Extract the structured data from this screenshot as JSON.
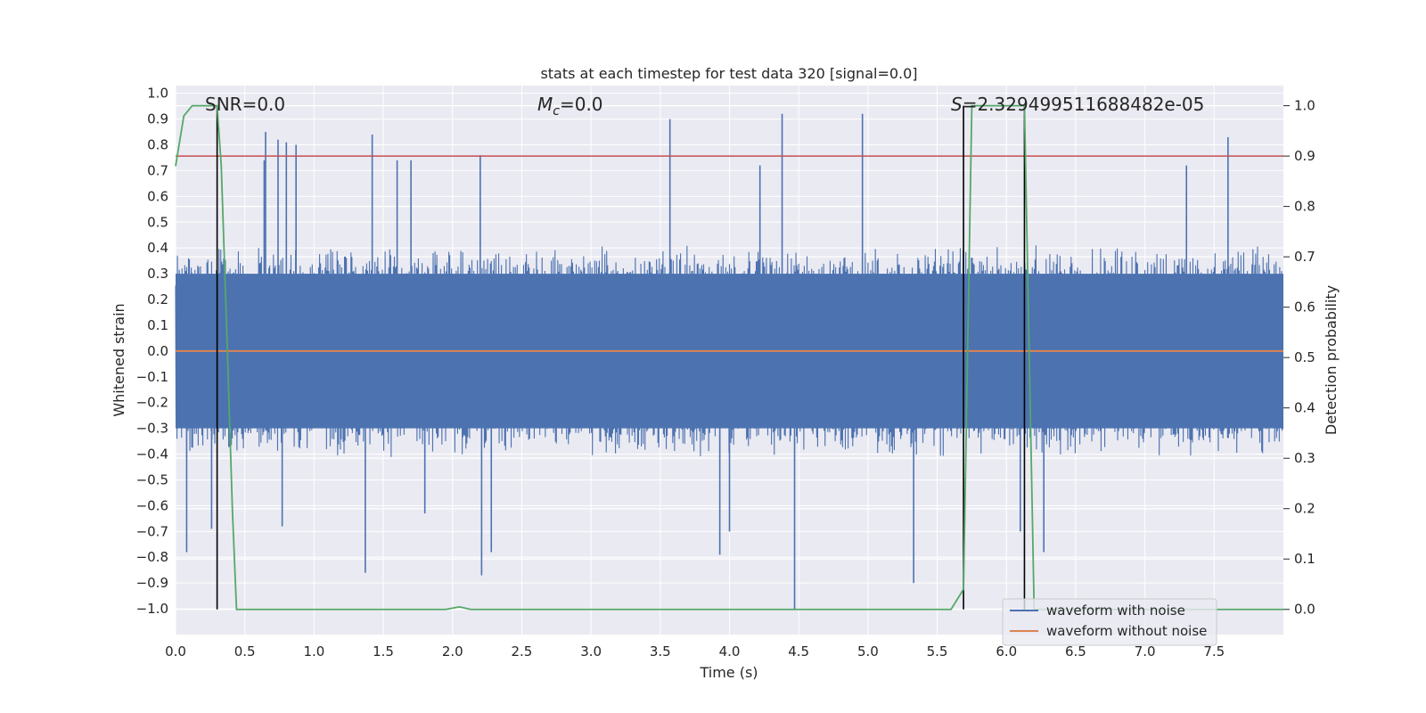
{
  "chart_data": {
    "type": "line",
    "title": "stats at each timestep for test data 320 [signal=0.0]",
    "xlabel": "Time (s)",
    "ylabel_left": "Whitened strain",
    "ylabel_right": "Detection probability",
    "xlim": [
      0.0,
      8.0
    ],
    "ylim_left": [
      -1.1,
      1.03
    ],
    "ylim_right": [
      -0.05,
      1.04
    ],
    "x_ticks": [
      "0.0",
      "0.5",
      "1.0",
      "1.5",
      "2.0",
      "2.5",
      "3.0",
      "3.5",
      "4.0",
      "4.5",
      "5.0",
      "5.5",
      "6.0",
      "6.5",
      "7.0",
      "7.5"
    ],
    "y_left_ticks": [
      "1.0",
      "0.9",
      "0.8",
      "0.7",
      "0.6",
      "0.5",
      "0.4",
      "0.3",
      "0.2",
      "0.1",
      "0.0",
      "−0.1",
      "−0.2",
      "−0.3",
      "−0.4",
      "−0.5",
      "−0.6",
      "−0.7",
      "−0.8",
      "−0.9",
      "−1.0"
    ],
    "y_right_ticks": [
      "0.0",
      "0.1",
      "0.2",
      "0.3",
      "0.4",
      "0.5",
      "0.6",
      "0.7",
      "0.8",
      "0.9",
      "1.0"
    ],
    "annotations": {
      "snr_prefix": "SNR",
      "snr_value": "=0.0",
      "mc_symbol": "M",
      "mc_sub": "c",
      "mc_value": "=0.0",
      "s_symbol": "S",
      "s_value": "=2.329499511688482e-05"
    },
    "threshold_right": 0.9,
    "vertical_markers_s": [
      0.3,
      5.69,
      6.13
    ],
    "noise_envelope": {
      "typical_min": -0.42,
      "typical_max": 0.42,
      "peak_max": 0.92,
      "peak_min": -1.0
    },
    "noise_spikes": [
      {
        "t": 0.64,
        "v": 0.74
      },
      {
        "t": 0.65,
        "v": 0.85
      },
      {
        "t": 0.74,
        "v": 0.82
      },
      {
        "t": 0.8,
        "v": 0.81
      },
      {
        "t": 0.87,
        "v": 0.8
      },
      {
        "t": 1.42,
        "v": 0.84
      },
      {
        "t": 1.6,
        "v": 0.74
      },
      {
        "t": 1.7,
        "v": 0.74
      },
      {
        "t": 2.2,
        "v": 0.76
      },
      {
        "t": 3.57,
        "v": 0.9
      },
      {
        "t": 4.22,
        "v": 0.72
      },
      {
        "t": 4.38,
        "v": 0.92
      },
      {
        "t": 4.96,
        "v": 0.92
      },
      {
        "t": 7.6,
        "v": 0.83
      },
      {
        "t": 7.3,
        "v": 0.72
      },
      {
        "t": 0.08,
        "v": -0.78
      },
      {
        "t": 0.26,
        "v": -0.69
      },
      {
        "t": 1.37,
        "v": -0.86
      },
      {
        "t": 2.21,
        "v": -0.87
      },
      {
        "t": 2.28,
        "v": -0.78
      },
      {
        "t": 3.93,
        "v": -0.79
      },
      {
        "t": 4.47,
        "v": -1.0
      },
      {
        "t": 5.33,
        "v": -0.9
      },
      {
        "t": 6.1,
        "v": -0.7
      },
      {
        "t": 6.27,
        "v": -0.78
      },
      {
        "t": 0.77,
        "v": -0.68
      },
      {
        "t": 1.8,
        "v": -0.63
      },
      {
        "t": 4.0,
        "v": -0.7
      }
    ],
    "series": [
      {
        "name": "waveform with noise",
        "color": "#4c72b0",
        "axis": "left"
      },
      {
        "name": "waveform without noise",
        "color": "#dd8452",
        "axis": "left",
        "y": 0.0
      },
      {
        "name": "detection probability",
        "color": "#55a868",
        "axis": "right",
        "x": [
          0.0,
          0.06,
          0.12,
          0.3,
          0.33,
          0.37,
          0.41,
          0.44,
          1.95,
          2.05,
          2.13,
          5.6,
          5.69,
          5.75,
          6.13,
          6.2,
          8.0
        ],
        "y": [
          0.88,
          0.98,
          1.0,
          1.0,
          0.88,
          0.55,
          0.2,
          0.0,
          0.0,
          0.005,
          0.0,
          0.0,
          0.04,
          1.0,
          1.0,
          0.0,
          0.0
        ]
      },
      {
        "name": "threshold",
        "color": "#c44e52",
        "axis": "right",
        "y": 0.9
      }
    ],
    "legend": {
      "placement": "bottom-right",
      "entries": [
        {
          "label": "waveform with noise",
          "color": "#4c72b0"
        },
        {
          "label": "waveform without noise",
          "color": "#dd8452"
        }
      ]
    },
    "colors": {
      "background": "#eaeaf2",
      "grid": "#ffffff",
      "marker": "#000000"
    }
  }
}
